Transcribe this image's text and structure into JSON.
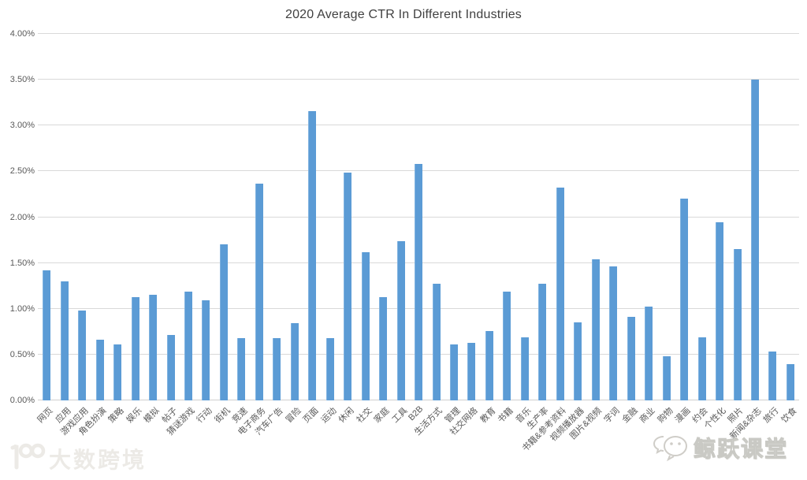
{
  "title": "2020 Average CTR In Different Industries",
  "chart_data": {
    "type": "bar",
    "title": "2020 Average CTR In Different Industries",
    "xlabel": "",
    "ylabel": "",
    "unit": "%",
    "ylim": [
      0,
      4.0
    ],
    "ytick_step": 0.5,
    "ytick_labels": [
      "0.00%",
      "0.50%",
      "1.00%",
      "1.50%",
      "2.00%",
      "2.50%",
      "3.00%",
      "3.50%",
      "4.00%"
    ],
    "grid": true,
    "legend": false,
    "bar_color": "#5b9bd5",
    "gridline_color": "#d9d9d9",
    "axis_text_color": "#595959",
    "categories": [
      "网页",
      "应用",
      "游戏应用",
      "角色扮演",
      "策略",
      "娱乐",
      "模拟",
      "帖子",
      "猜谜游戏",
      "行动",
      "街机",
      "竞速",
      "电子商务",
      "汽车广告",
      "冒险",
      "页面",
      "运动",
      "休闲",
      "社交",
      "家庭",
      "工具",
      "B2B",
      "生活方式",
      "管理",
      "社交网络",
      "教育",
      "书籍",
      "音乐",
      "生产率",
      "书籍&参考资料",
      "视频播放器",
      "图片&视频",
      "字词",
      "金融",
      "商业",
      "购物",
      "漫画",
      "约会",
      "个性化",
      "照片",
      "新闻&杂志",
      "旅行",
      "饮食"
    ],
    "values": [
      1.42,
      1.3,
      0.98,
      0.66,
      0.61,
      1.13,
      1.15,
      0.71,
      1.19,
      1.09,
      1.7,
      0.68,
      2.37,
      0.68,
      0.84,
      3.16,
      0.68,
      2.49,
      1.62,
      1.13,
      1.74,
      2.58,
      1.27,
      0.61,
      0.63,
      0.76,
      1.19,
      0.69,
      1.27,
      2.32,
      0.85,
      1.54,
      1.46,
      0.91,
      1.02,
      0.48,
      2.2,
      0.69,
      1.94,
      1.65,
      3.5,
      0.53,
      0.4
    ]
  },
  "watermarks": {
    "bottom_left_text": "大数跨境",
    "bottom_right_text": "鲸跃课堂",
    "bottom_left_icon": "100-logo-icon",
    "bottom_right_icon": "wechat-icon"
  }
}
